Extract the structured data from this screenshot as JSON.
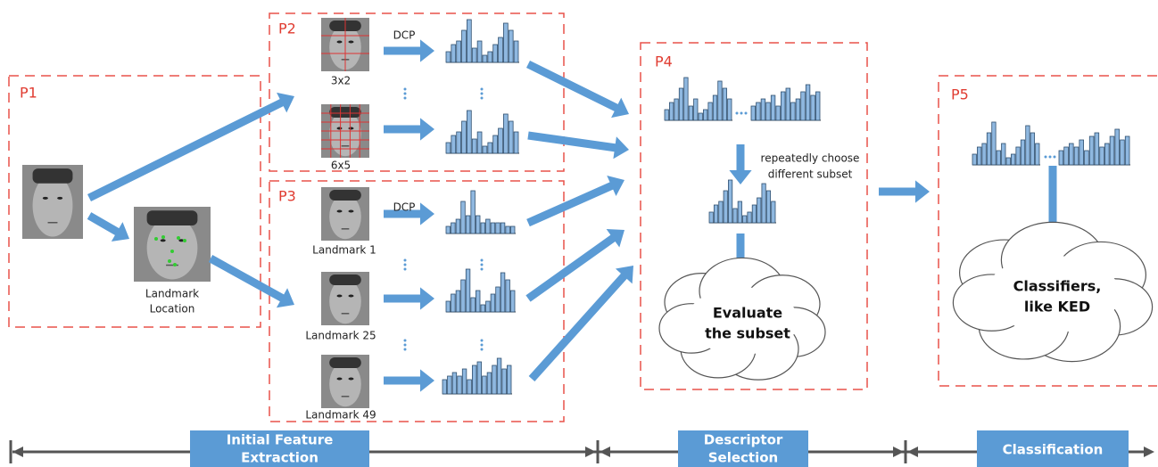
{
  "panels": [
    "P1",
    "P2",
    "P3",
    "P4",
    "P5"
  ],
  "p1": {
    "caption": [
      "Landmark",
      "Location"
    ]
  },
  "p2": {
    "method": "DCP",
    "grids": [
      "3x2",
      "6x5"
    ]
  },
  "p3": {
    "method": "DCP",
    "landmarks": [
      "Landmark 1",
      "Landmark 25",
      "Landmark 49"
    ]
  },
  "p4": {
    "note": [
      "repeatedly choose",
      "different subset"
    ],
    "cloud": [
      "Evaluate",
      "the  subset"
    ]
  },
  "p5": {
    "cloud": [
      "Classifiers,",
      "like KED"
    ]
  },
  "timeline": {
    "stages": [
      [
        "Initial Feature",
        "Extraction"
      ],
      [
        "Descriptor",
        "Selection"
      ],
      [
        "Classification"
      ]
    ]
  }
}
